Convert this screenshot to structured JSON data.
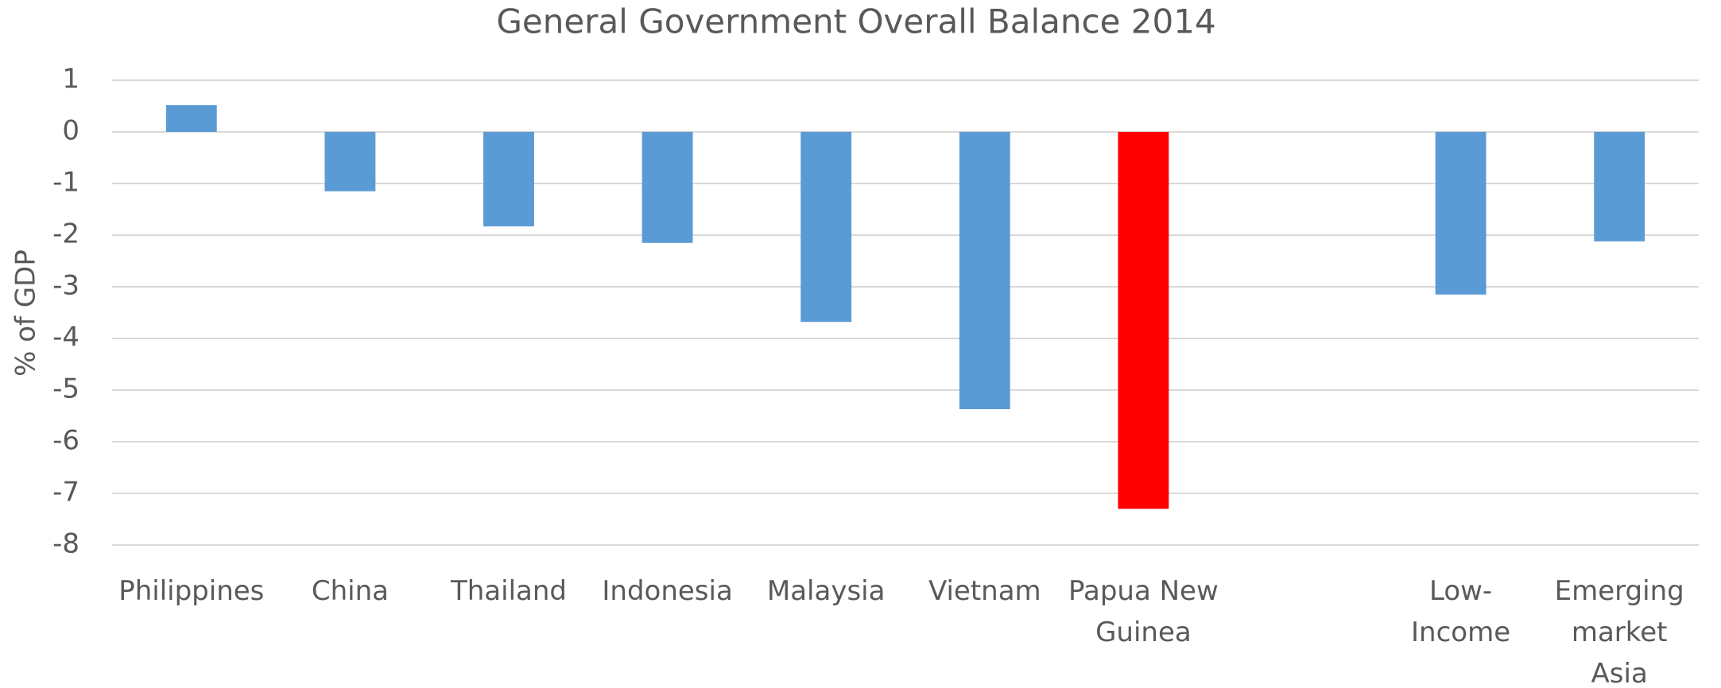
{
  "chart_data": {
    "type": "bar",
    "title": "General Government Overall Balance 2014",
    "y_label": "% of GDP",
    "categories": [
      "Philippines",
      "China",
      "Thailand",
      "Indonesia",
      "Malaysia",
      "Vietnam",
      "Papua New Guinea",
      null,
      "Low-Income",
      "Emerging market Asia"
    ],
    "values": [
      0.52,
      -1.15,
      -1.83,
      -2.15,
      -3.68,
      -5.37,
      -7.3,
      null,
      -3.15,
      -2.12
    ],
    "colors": [
      "#5b9bd5",
      "#5b9bd5",
      "#5b9bd5",
      "#5b9bd5",
      "#5b9bd5",
      "#5b9bd5",
      "#ff0000",
      "#5b9bd5",
      "#5b9bd5",
      "#5b9bd5"
    ],
    "ylim": [
      -8,
      1
    ],
    "yticks": [
      -8,
      -7,
      -6,
      -5,
      -4,
      -3,
      -2,
      -1,
      0,
      1
    ],
    "grid": true
  }
}
